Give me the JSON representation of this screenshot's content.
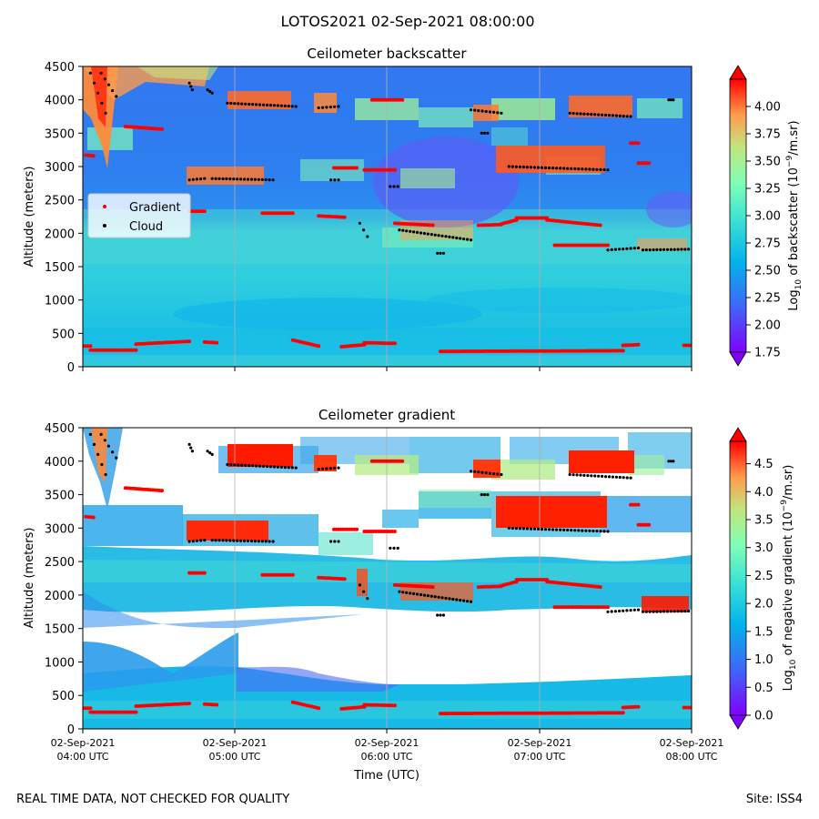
{
  "figure": {
    "suptitle": "LOTOS2021 02-Sep-2021 08:00:00",
    "footer_left": "REAL TIME DATA, NOT CHECKED FOR QUALITY",
    "footer_right": "Site: ISS4"
  },
  "chart_data": [
    {
      "type": "heatmap",
      "title": "Ceilometer backscatter",
      "xlabel": "",
      "ylabel": "Altitude (meters)",
      "ylim": [
        0,
        4500
      ],
      "yticks": [
        "0",
        "500",
        "1000",
        "1500",
        "2000",
        "2500",
        "3000",
        "3500",
        "4000",
        "4500"
      ],
      "xlim_hours": [
        4,
        8
      ],
      "xticks_hours": [
        4,
        5,
        6,
        7,
        8
      ],
      "grid": "vertical lines at hourly ticks",
      "legend": {
        "placement": "center-left",
        "entries": [
          {
            "label": "Gradient",
            "color": "#ff0000"
          },
          {
            "label": "Cloud",
            "color": "#000000"
          }
        ]
      },
      "colorbar": {
        "label_pre": "Log",
        "label_sub": "10",
        "label_mid": " of backscatter (10",
        "label_sup": "−9",
        "label_post": "/m.sr)",
        "range": [
          1.75,
          4.25
        ],
        "ticks": [
          "1.75",
          "2.00",
          "2.25",
          "2.50",
          "2.75",
          "3.00",
          "3.25",
          "3.50",
          "3.75",
          "4.00"
        ],
        "colormap": "rainbow"
      }
    },
    {
      "type": "heatmap",
      "title": "Ceilometer gradient",
      "xlabel": "Time (UTC)",
      "ylabel": "Altitude (meters)",
      "ylim": [
        0,
        4500
      ],
      "yticks": [
        "0",
        "500",
        "1000",
        "1500",
        "2000",
        "2500",
        "3000",
        "3500",
        "4000",
        "4500"
      ],
      "xlim_hours": [
        4,
        8
      ],
      "xticks_hours": [
        4,
        5,
        6,
        7,
        8
      ],
      "xtick_labels": [
        {
          "date": "02-Sep-2021",
          "time": "04:00 UTC"
        },
        {
          "date": "02-Sep-2021",
          "time": "05:00 UTC"
        },
        {
          "date": "02-Sep-2021",
          "time": "06:00 UTC"
        },
        {
          "date": "02-Sep-2021",
          "time": "07:00 UTC"
        },
        {
          "date": "02-Sep-2021",
          "time": "08:00 UTC"
        }
      ],
      "grid": "vertical lines at hourly ticks",
      "colorbar": {
        "label_pre": "Log",
        "label_sub": "10",
        "label_mid": " of negative gradient (10",
        "label_sup": "−9",
        "label_post": "/m.sr)",
        "range": [
          0.0,
          4.9
        ],
        "ticks": [
          "0.0",
          "0.5",
          "1.0",
          "1.5",
          "2.0",
          "2.5",
          "3.0",
          "3.5",
          "4.0",
          "4.5"
        ],
        "colormap": "rainbow"
      }
    }
  ],
  "gradient_series": [
    {
      "t": [
        4.0,
        4.05
      ],
      "h": [
        310,
        310
      ]
    },
    {
      "t": [
        4.05,
        4.35
      ],
      "h": [
        250,
        250
      ]
    },
    {
      "t": [
        4.35,
        4.7
      ],
      "h": [
        340,
        380
      ]
    },
    {
      "t": [
        4.8,
        4.88
      ],
      "h": [
        370,
        360
      ]
    },
    {
      "t": [
        5.38,
        5.55
      ],
      "h": [
        400,
        310
      ]
    },
    {
      "t": [
        5.7,
        5.85
      ],
      "h": [
        300,
        330
      ]
    },
    {
      "t": [
        5.85,
        6.05
      ],
      "h": [
        360,
        350
      ]
    },
    {
      "t": [
        6.35,
        7.55
      ],
      "h": [
        230,
        240
      ]
    },
    {
      "t": [
        7.55,
        7.65
      ],
      "h": [
        320,
        330
      ]
    },
    {
      "t": [
        7.95,
        8.0
      ],
      "h": [
        320,
        320
      ]
    },
    {
      "t": [
        4.02,
        4.07
      ],
      "h": [
        3170,
        3160
      ]
    },
    {
      "t": [
        4.28,
        4.52
      ],
      "h": [
        3600,
        3560
      ]
    },
    {
      "t": [
        4.7,
        4.8
      ],
      "h": [
        2330,
        2330
      ]
    },
    {
      "t": [
        5.18,
        5.38
      ],
      "h": [
        2300,
        2300
      ]
    },
    {
      "t": [
        5.55,
        5.72
      ],
      "h": [
        2260,
        2240
      ]
    },
    {
      "t": [
        6.05,
        6.3
      ],
      "h": [
        2150,
        2120
      ]
    },
    {
      "t": [
        6.6,
        6.75
      ],
      "h": [
        2120,
        2130
      ]
    },
    {
      "t": [
        6.75,
        6.85
      ],
      "h": [
        2140,
        2200
      ]
    },
    {
      "t": [
        6.85,
        7.05
      ],
      "h": [
        2230,
        2230
      ]
    },
    {
      "t": [
        7.05,
        7.4
      ],
      "h": [
        2200,
        2120
      ]
    },
    {
      "t": [
        7.1,
        7.45
      ],
      "h": [
        1820,
        1820
      ]
    },
    {
      "t": [
        5.85,
        6.05
      ],
      "h": [
        2950,
        2950
      ]
    },
    {
      "t": [
        5.65,
        5.8
      ],
      "h": [
        2980,
        2980
      ]
    },
    {
      "t": [
        5.9,
        6.1
      ],
      "h": [
        4000,
        4000
      ]
    },
    {
      "t": [
        7.6,
        7.65
      ],
      "h": [
        3350,
        3350
      ]
    },
    {
      "t": [
        7.65,
        7.72
      ],
      "h": [
        3050,
        3050
      ]
    }
  ],
  "cloud_series": [
    {
      "t": [
        4.05,
        4.15
      ],
      "h": [
        4400,
        3800
      ]
    },
    {
      "t": [
        4.12,
        4.22
      ],
      "h": [
        4400,
        4050
      ]
    },
    {
      "t": [
        4.7,
        4.72
      ],
      "h": [
        4250,
        4150
      ]
    },
    {
      "t": [
        4.82,
        4.85
      ],
      "h": [
        4150,
        4100
      ]
    },
    {
      "t": [
        4.95,
        5.4
      ],
      "h": [
        3950,
        3900
      ]
    },
    {
      "t": [
        5.55,
        5.68
      ],
      "h": [
        3880,
        3900
      ]
    },
    {
      "t": [
        4.7,
        4.8
      ],
      "h": [
        2800,
        2820
      ]
    },
    {
      "t": [
        4.85,
        5.25
      ],
      "h": [
        2820,
        2800
      ]
    },
    {
      "t": [
        5.63,
        5.68
      ],
      "h": [
        2800,
        2800
      ]
    },
    {
      "t": [
        6.02,
        6.07
      ],
      "h": [
        2700,
        2700
      ]
    },
    {
      "t": [
        5.82,
        5.87
      ],
      "h": [
        2150,
        1950
      ]
    },
    {
      "t": [
        6.08,
        6.55
      ],
      "h": [
        2050,
        1900
      ]
    },
    {
      "t": [
        6.33,
        6.37
      ],
      "h": [
        1700,
        1700
      ]
    },
    {
      "t": [
        6.55,
        6.75
      ],
      "h": [
        3850,
        3800
      ]
    },
    {
      "t": [
        6.62,
        6.66
      ],
      "h": [
        3500,
        3500
      ]
    },
    {
      "t": [
        6.8,
        7.45
      ],
      "h": [
        3000,
        2950
      ]
    },
    {
      "t": [
        7.2,
        7.6
      ],
      "h": [
        3800,
        3750
      ]
    },
    {
      "t": [
        7.45,
        7.65
      ],
      "h": [
        1750,
        1780
      ]
    },
    {
      "t": [
        7.68,
        7.98
      ],
      "h": [
        1750,
        1760
      ]
    },
    {
      "t": [
        7.85,
        7.88
      ],
      "h": [
        4000,
        4000
      ]
    }
  ]
}
